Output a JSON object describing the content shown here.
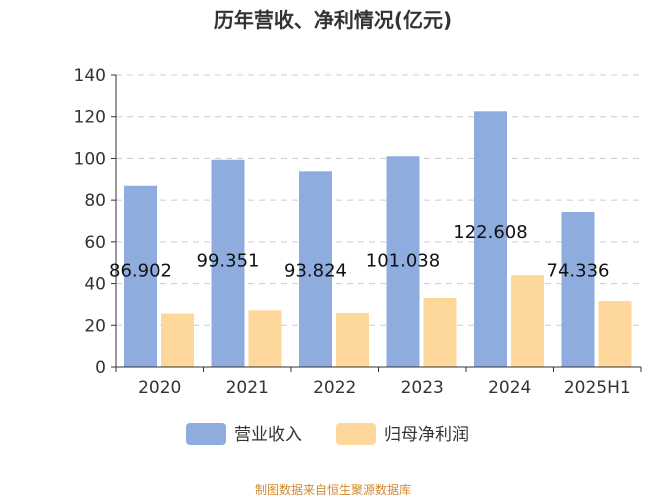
{
  "chart_data": {
    "type": "bar",
    "title": "历年营收、净利情况(亿元)",
    "categories": [
      "2020",
      "2021",
      "2022",
      "2023",
      "2024",
      "2025H1"
    ],
    "series": [
      {
        "name": "营业收入",
        "color": "#8eadde",
        "values": [
          86.902,
          99.351,
          93.824,
          101.038,
          122.608,
          74.336
        ],
        "data_labels": [
          "86.902",
          "99.351",
          "93.824",
          "101.038",
          "122.608",
          "74.336"
        ]
      },
      {
        "name": "归母净利润",
        "color": "#fdd89a",
        "values": [
          25.6,
          27.2,
          25.9,
          33.1,
          44.0,
          31.6
        ]
      }
    ],
    "ylim": [
      0,
      140
    ],
    "yticks": [
      "0",
      "20",
      "40",
      "60",
      "80",
      "100",
      "120",
      "140"
    ],
    "grid": true,
    "legend_position": "bottom"
  },
  "source_text": "制图数据来自恒生聚源数据库"
}
